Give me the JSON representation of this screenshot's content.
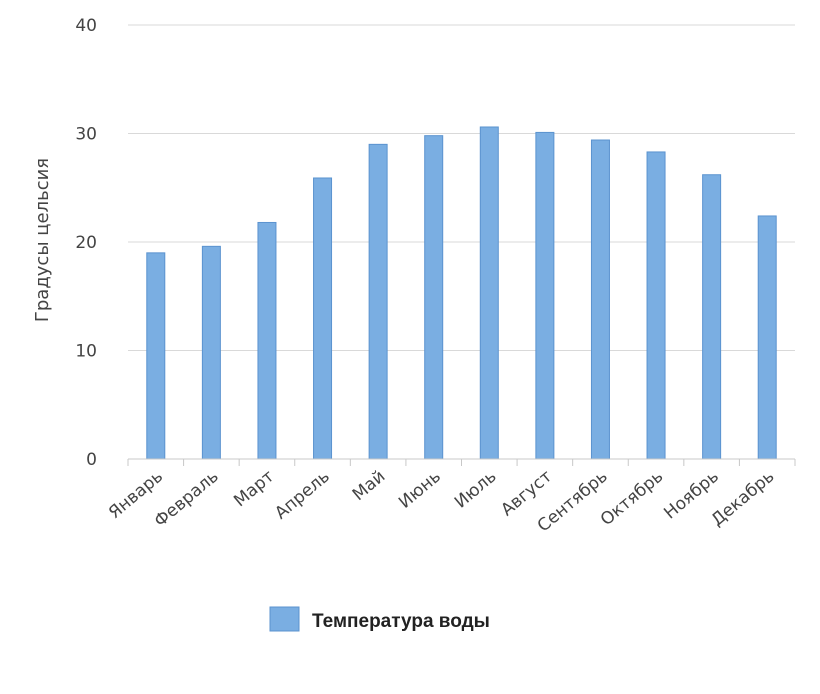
{
  "chart_data": {
    "type": "bar",
    "categories": [
      "Январь",
      "Февраль",
      "Март",
      "Апрель",
      "Май",
      "Июнь",
      "Июль",
      "Август",
      "Сентябрь",
      "Октябрь",
      "Ноябрь",
      "Декабрь"
    ],
    "series": [
      {
        "name": "Температура воды",
        "values": [
          19,
          19.6,
          21.8,
          25.9,
          29,
          29.8,
          30.6,
          30.1,
          29.4,
          28.3,
          26.2,
          22.4
        ],
        "color": "#7aaee2"
      }
    ],
    "ylabel": "Градусы цельсия",
    "xlabel": "",
    "ylim": [
      0,
      40
    ],
    "yticks": [
      0,
      10,
      20,
      30,
      40
    ],
    "grid": true,
    "legend": "bottom-center"
  }
}
